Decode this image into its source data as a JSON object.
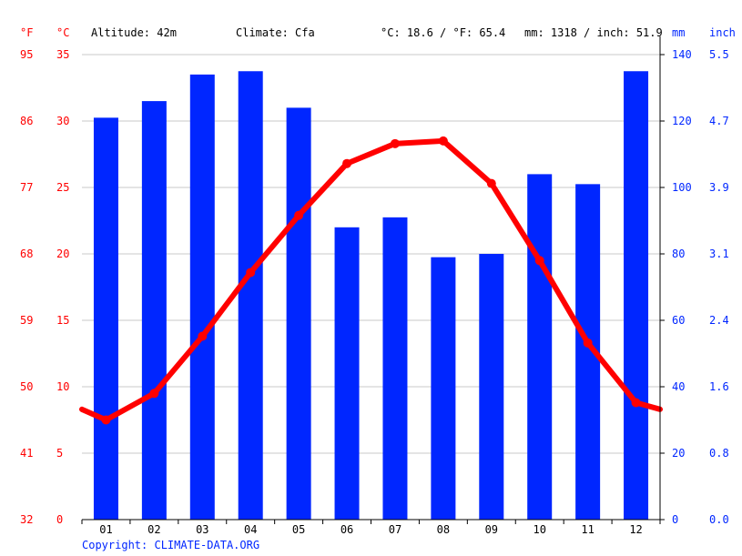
{
  "header": {
    "unit_f": "°F",
    "unit_c": "°C",
    "altitude": "Altitude: 42m",
    "climate": "Climate: Cfa",
    "temp_avg": "°C: 18.6 / °F: 65.4",
    "precip_total": "mm: 1318 / inch: 51.9",
    "unit_mm": "mm",
    "unit_inch": "inch"
  },
  "footer": {
    "copyright": "Copyright: CLIMATE-DATA.ORG"
  },
  "colors": {
    "temperature": "#ff0000",
    "precipitation": "#0026ff",
    "grid": "#c8c8c8",
    "axis": "#000000"
  },
  "chart_data": {
    "type": "bar",
    "title": "",
    "categories": [
      "01",
      "02",
      "03",
      "04",
      "05",
      "06",
      "07",
      "08",
      "09",
      "10",
      "11",
      "12"
    ],
    "series": [
      {
        "type": "bar",
        "axis": "right",
        "values": [
          121,
          126,
          134,
          135,
          124,
          88,
          91,
          79,
          80,
          104,
          101,
          135
        ]
      },
      {
        "type": "line",
        "axis": "left",
        "values": [
          7.5,
          9.5,
          13.8,
          18.6,
          22.9,
          26.8,
          28.3,
          28.5,
          25.3,
          19.5,
          13.3,
          8.8
        ]
      }
    ],
    "x_start_value": 8.3,
    "x_end_value": 8.3,
    "left_axis_c": {
      "ticks": [
        0,
        5,
        10,
        15,
        20,
        25,
        30,
        35
      ],
      "ylim": [
        0,
        35
      ]
    },
    "left_axis_f": {
      "ticks": [
        32,
        41,
        50,
        59,
        68,
        77,
        86,
        95
      ]
    },
    "right_axis_mm": {
      "ticks": [
        0,
        20,
        40,
        60,
        80,
        100,
        120,
        140
      ],
      "ylim": [
        0,
        140
      ]
    },
    "right_axis_inch": {
      "ticks": [
        "0.0",
        "0.8",
        "1.6",
        "2.4",
        "3.1",
        "3.9",
        "4.7",
        "5.5"
      ]
    },
    "grid": true
  }
}
